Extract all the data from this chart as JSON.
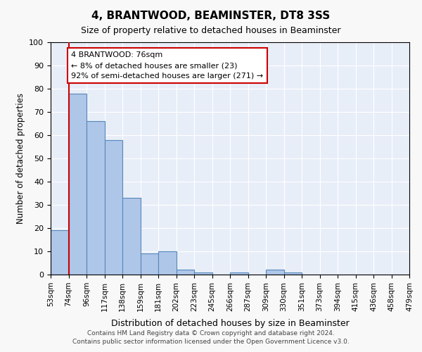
{
  "title": "4, BRANTWOOD, BEAMINSTER, DT8 3SS",
  "subtitle": "Size of property relative to detached houses in Beaminster",
  "xlabel": "Distribution of detached houses by size in Beaminster",
  "ylabel": "Number of detached properties",
  "bin_labels": [
    "53sqm",
    "74sqm",
    "96sqm",
    "117sqm",
    "138sqm",
    "159sqm",
    "181sqm",
    "202sqm",
    "223sqm",
    "245sqm",
    "266sqm",
    "287sqm",
    "309sqm",
    "330sqm",
    "351sqm",
    "373sqm",
    "394sqm",
    "415sqm",
    "436sqm",
    "458sqm",
    "479sqm"
  ],
  "bar_values": [
    19,
    78,
    66,
    58,
    33,
    9,
    10,
    2,
    1,
    0,
    1,
    0,
    2,
    1,
    0,
    0,
    0,
    0,
    0,
    0
  ],
  "bar_color": "#aec6e8",
  "bar_edge_color": "#5588bb",
  "ylim": [
    0,
    100
  ],
  "yticks": [
    0,
    10,
    20,
    30,
    40,
    50,
    60,
    70,
    80,
    90,
    100
  ],
  "property_sqm": 76,
  "property_bin_index": 1,
  "red_line_color": "#cc0000",
  "annotation_text": "4 BRANTWOOD: 76sqm\n← 8% of detached houses are smaller (23)\n92% of semi-detached houses are larger (271) →",
  "annotation_box_color": "#ffffff",
  "annotation_box_edge_color": "#cc0000",
  "footer_line1": "Contains HM Land Registry data © Crown copyright and database right 2024.",
  "footer_line2": "Contains public sector information licensed under the Open Government Licence v3.0.",
  "background_color": "#e8eef8",
  "grid_color": "#ffffff",
  "fig_facecolor": "#f8f8f8"
}
